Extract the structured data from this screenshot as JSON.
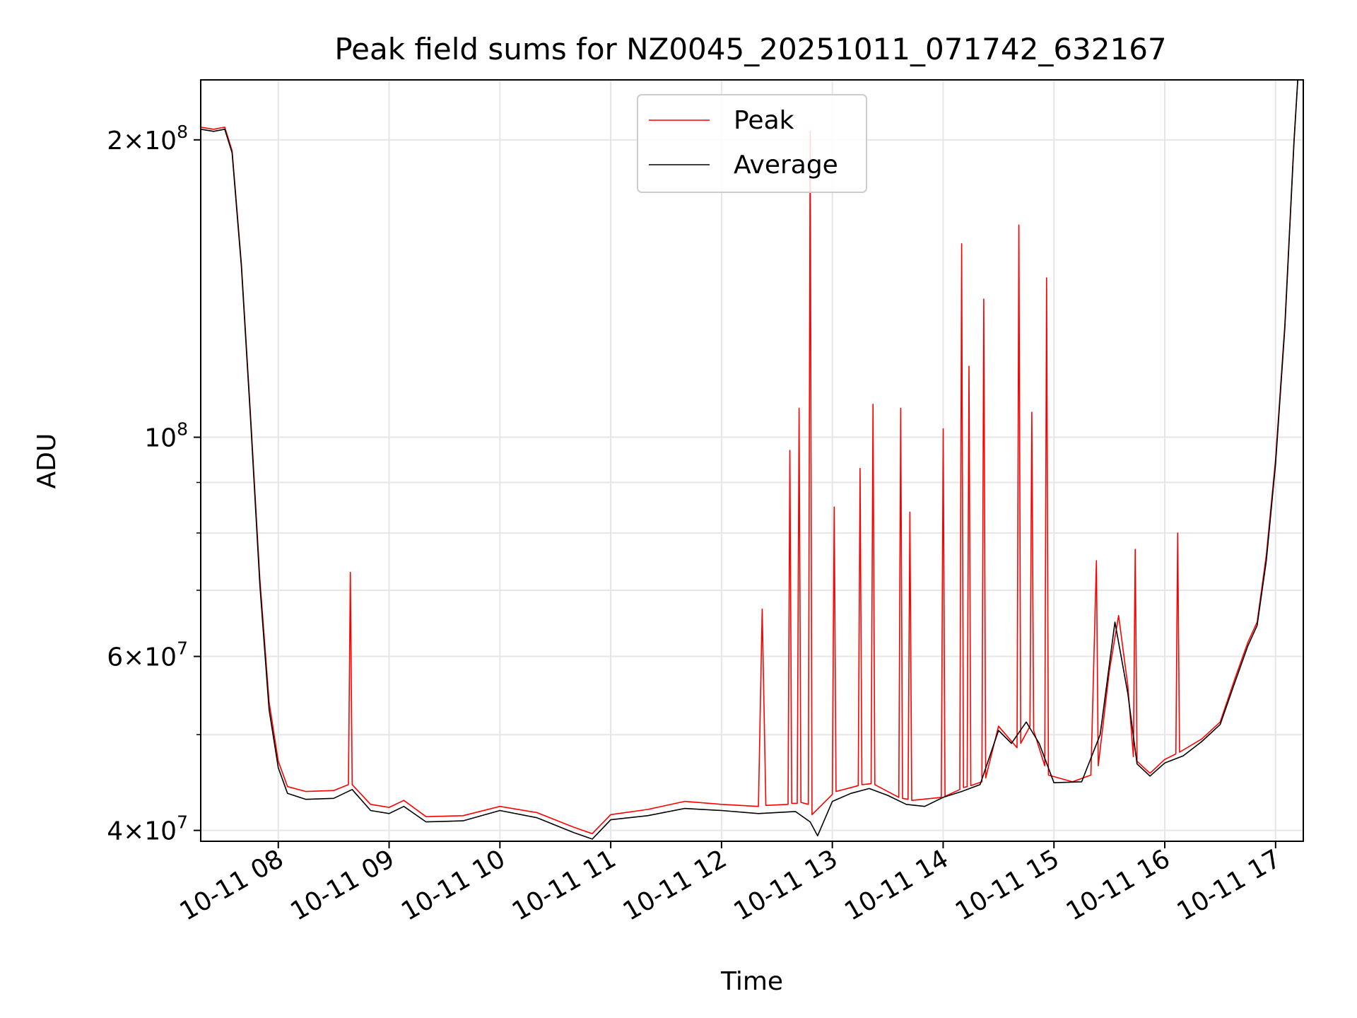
{
  "chart_data": {
    "type": "line",
    "title": "Peak field sums for NZ0045_20251011_071742_632167",
    "xlabel": "Time",
    "ylabel": "ADU",
    "y_scale": "log",
    "ylim": [
      39000000,
      230000000
    ],
    "xlim": [
      "2025-10-11 07:18",
      "2025-10-11 17:15"
    ],
    "grid": true,
    "legend_position": "upper center",
    "x_ticks": [
      {
        "t": "2025-10-11 08:00",
        "label": "10-11 08"
      },
      {
        "t": "2025-10-11 09:00",
        "label": "10-11 09"
      },
      {
        "t": "2025-10-11 10:00",
        "label": "10-11 10"
      },
      {
        "t": "2025-10-11 11:00",
        "label": "10-11 11"
      },
      {
        "t": "2025-10-11 12:00",
        "label": "10-11 12"
      },
      {
        "t": "2025-10-11 13:00",
        "label": "10-11 13"
      },
      {
        "t": "2025-10-11 14:00",
        "label": "10-11 14"
      },
      {
        "t": "2025-10-11 15:00",
        "label": "10-11 15"
      },
      {
        "t": "2025-10-11 16:00",
        "label": "10-11 16"
      },
      {
        "t": "2025-10-11 17:00",
        "label": "10-11 17"
      }
    ],
    "y_ticks": [
      {
        "value": 40000000,
        "mantissa": "4",
        "exp": "7"
      },
      {
        "value": 60000000,
        "mantissa": "6",
        "exp": "7"
      },
      {
        "value": 100000000,
        "mantissa": "",
        "exp": "8"
      },
      {
        "value": 200000000,
        "mantissa": "2",
        "exp": "8"
      }
    ],
    "y_minor_ticks": [
      50000000,
      70000000,
      80000000,
      90000000
    ],
    "series": [
      {
        "name": "Peak",
        "color": "#ff0000",
        "points": [
          [
            "2025-10-11 07:18",
            206000000
          ],
          [
            "2025-10-11 07:25",
            205000000
          ],
          [
            "2025-10-11 07:31",
            206000000
          ],
          [
            "2025-10-11 07:35",
            195000000
          ],
          [
            "2025-10-11 07:40",
            150000000
          ],
          [
            "2025-10-11 07:45",
            105000000
          ],
          [
            "2025-10-11 07:50",
            72000000
          ],
          [
            "2025-10-11 07:55",
            54000000
          ],
          [
            "2025-10-11 08:00",
            47000000
          ],
          [
            "2025-10-11 08:05",
            44300000
          ],
          [
            "2025-10-11 08:15",
            43800000
          ],
          [
            "2025-10-11 08:30",
            43900000
          ],
          [
            "2025-10-11 08:38",
            44500000
          ],
          [
            "2025-10-11 08:39",
            73000000
          ],
          [
            "2025-10-11 08:40",
            44500000
          ],
          [
            "2025-10-11 08:50",
            42500000
          ],
          [
            "2025-10-11 09:00",
            42200000
          ],
          [
            "2025-10-11 09:08",
            42900000
          ],
          [
            "2025-10-11 09:20",
            41300000
          ],
          [
            "2025-10-11 09:40",
            41400000
          ],
          [
            "2025-10-11 10:00",
            42300000
          ],
          [
            "2025-10-11 10:20",
            41700000
          ],
          [
            "2025-10-11 10:40",
            40300000
          ],
          [
            "2025-10-11 10:50",
            39700000
          ],
          [
            "2025-10-11 11:00",
            41500000
          ],
          [
            "2025-10-11 11:20",
            42000000
          ],
          [
            "2025-10-11 11:40",
            42800000
          ],
          [
            "2025-10-11 12:00",
            42500000
          ],
          [
            "2025-10-11 12:20",
            42300000
          ],
          [
            "2025-10-11 12:22",
            67000000
          ],
          [
            "2025-10-11 12:24",
            42400000
          ],
          [
            "2025-10-11 12:36",
            42500000
          ],
          [
            "2025-10-11 12:37",
            97000000
          ],
          [
            "2025-10-11 12:38",
            42600000
          ],
          [
            "2025-10-11 12:41",
            42600000
          ],
          [
            "2025-10-11 12:42",
            107000000
          ],
          [
            "2025-10-11 12:43",
            42700000
          ],
          [
            "2025-10-11 12:47",
            42500000
          ],
          [
            "2025-10-11 12:48",
            204000000
          ],
          [
            "2025-10-11 12:49",
            41500000
          ],
          [
            "2025-10-11 13:00",
            43500000
          ],
          [
            "2025-10-11 13:01",
            85000000
          ],
          [
            "2025-10-11 13:02",
            43800000
          ],
          [
            "2025-10-11 13:14",
            44400000
          ],
          [
            "2025-10-11 13:15",
            93000000
          ],
          [
            "2025-10-11 13:16",
            44500000
          ],
          [
            "2025-10-11 13:21",
            44600000
          ],
          [
            "2025-10-11 13:22",
            108000000
          ],
          [
            "2025-10-11 13:23",
            44500000
          ],
          [
            "2025-10-11 13:36",
            43200000
          ],
          [
            "2025-10-11 13:37",
            107000000
          ],
          [
            "2025-10-11 13:38",
            43100000
          ],
          [
            "2025-10-11 13:41",
            43000000
          ],
          [
            "2025-10-11 13:42",
            84000000
          ],
          [
            "2025-10-11 13:43",
            42900000
          ],
          [
            "2025-10-11 13:59",
            43200000
          ],
          [
            "2025-10-11 14:00",
            102000000
          ],
          [
            "2025-10-11 14:01",
            43300000
          ],
          [
            "2025-10-11 14:09",
            44000000
          ],
          [
            "2025-10-11 14:10",
            157000000
          ],
          [
            "2025-10-11 14:11",
            44200000
          ],
          [
            "2025-10-11 14:13",
            44300000
          ],
          [
            "2025-10-11 14:14",
            118000000
          ],
          [
            "2025-10-11 14:15",
            44400000
          ],
          [
            "2025-10-11 14:21",
            44800000
          ],
          [
            "2025-10-11 14:22",
            138000000
          ],
          [
            "2025-10-11 14:23",
            45200000
          ],
          [
            "2025-10-11 14:30",
            51000000
          ],
          [
            "2025-10-11 14:40",
            48500000
          ],
          [
            "2025-10-11 14:41",
            164000000
          ],
          [
            "2025-10-11 14:42",
            49000000
          ],
          [
            "2025-10-11 14:47",
            51000000
          ],
          [
            "2025-10-11 14:48",
            106000000
          ],
          [
            "2025-10-11 14:49",
            50500000
          ],
          [
            "2025-10-11 14:55",
            46500000
          ],
          [
            "2025-10-11 14:56",
            145000000
          ],
          [
            "2025-10-11 14:57",
            45500000
          ],
          [
            "2025-10-11 15:10",
            44800000
          ],
          [
            "2025-10-11 15:20",
            45500000
          ],
          [
            "2025-10-11 15:23",
            75000000
          ],
          [
            "2025-10-11 15:24",
            46500000
          ],
          [
            "2025-10-11 15:30",
            58000000
          ],
          [
            "2025-10-11 15:35",
            66000000
          ],
          [
            "2025-10-11 15:40",
            56000000
          ],
          [
            "2025-10-11 15:43",
            47500000
          ],
          [
            "2025-10-11 15:44",
            77000000
          ],
          [
            "2025-10-11 15:45",
            47000000
          ],
          [
            "2025-10-11 15:52",
            45700000
          ],
          [
            "2025-10-11 16:00",
            47200000
          ],
          [
            "2025-10-11 16:06",
            47800000
          ],
          [
            "2025-10-11 16:07",
            80000000
          ],
          [
            "2025-10-11 16:08",
            48000000
          ],
          [
            "2025-10-11 16:20",
            49500000
          ],
          [
            "2025-10-11 16:30",
            51500000
          ],
          [
            "2025-10-11 16:38",
            57000000
          ],
          [
            "2025-10-11 16:45",
            62000000
          ],
          [
            "2025-10-11 16:50",
            65000000
          ],
          [
            "2025-10-11 16:55",
            76000000
          ],
          [
            "2025-10-11 17:00",
            95000000
          ],
          [
            "2025-10-11 17:05",
            130000000
          ],
          [
            "2025-10-11 17:10",
            200000000
          ],
          [
            "2025-10-11 17:12",
            230000000
          ]
        ]
      },
      {
        "name": "Average",
        "color": "#000000",
        "points": [
          [
            "2025-10-11 07:18",
            205000000
          ],
          [
            "2025-10-11 07:25",
            204000000
          ],
          [
            "2025-10-11 07:31",
            205000000
          ],
          [
            "2025-10-11 07:35",
            194000000
          ],
          [
            "2025-10-11 07:40",
            149000000
          ],
          [
            "2025-10-11 07:45",
            104000000
          ],
          [
            "2025-10-11 07:50",
            71000000
          ],
          [
            "2025-10-11 07:55",
            53000000
          ],
          [
            "2025-10-11 08:00",
            46300000
          ],
          [
            "2025-10-11 08:05",
            43600000
          ],
          [
            "2025-10-11 08:15",
            43000000
          ],
          [
            "2025-10-11 08:30",
            43100000
          ],
          [
            "2025-10-11 08:40",
            44000000
          ],
          [
            "2025-10-11 08:50",
            41900000
          ],
          [
            "2025-10-11 09:00",
            41600000
          ],
          [
            "2025-10-11 09:08",
            42300000
          ],
          [
            "2025-10-11 09:20",
            40800000
          ],
          [
            "2025-10-11 09:40",
            40900000
          ],
          [
            "2025-10-11 10:00",
            41900000
          ],
          [
            "2025-10-11 10:20",
            41200000
          ],
          [
            "2025-10-11 10:40",
            39800000
          ],
          [
            "2025-10-11 10:50",
            39200000
          ],
          [
            "2025-10-11 11:00",
            41000000
          ],
          [
            "2025-10-11 11:20",
            41400000
          ],
          [
            "2025-10-11 11:40",
            42100000
          ],
          [
            "2025-10-11 12:00",
            41900000
          ],
          [
            "2025-10-11 12:20",
            41600000
          ],
          [
            "2025-10-11 12:40",
            41800000
          ],
          [
            "2025-10-11 12:48",
            40800000
          ],
          [
            "2025-10-11 12:52",
            39500000
          ],
          [
            "2025-10-11 13:00",
            42800000
          ],
          [
            "2025-10-11 13:10",
            43600000
          ],
          [
            "2025-10-11 13:20",
            44100000
          ],
          [
            "2025-10-11 13:30",
            43400000
          ],
          [
            "2025-10-11 13:40",
            42500000
          ],
          [
            "2025-10-11 13:50",
            42300000
          ],
          [
            "2025-10-11 14:00",
            43200000
          ],
          [
            "2025-10-11 14:10",
            43800000
          ],
          [
            "2025-10-11 14:20",
            44500000
          ],
          [
            "2025-10-11 14:30",
            50500000
          ],
          [
            "2025-10-11 14:37",
            49000000
          ],
          [
            "2025-10-11 14:45",
            51500000
          ],
          [
            "2025-10-11 14:52",
            49000000
          ],
          [
            "2025-10-11 15:00",
            44700000
          ],
          [
            "2025-10-11 15:15",
            44800000
          ],
          [
            "2025-10-11 15:25",
            50000000
          ],
          [
            "2025-10-11 15:33",
            65000000
          ],
          [
            "2025-10-11 15:40",
            55000000
          ],
          [
            "2025-10-11 15:45",
            46700000
          ],
          [
            "2025-10-11 15:52",
            45400000
          ],
          [
            "2025-10-11 16:00",
            46800000
          ],
          [
            "2025-10-11 16:10",
            47600000
          ],
          [
            "2025-10-11 16:20",
            49200000
          ],
          [
            "2025-10-11 16:30",
            51200000
          ],
          [
            "2025-10-11 16:38",
            56500000
          ],
          [
            "2025-10-11 16:45",
            61500000
          ],
          [
            "2025-10-11 16:50",
            64500000
          ],
          [
            "2025-10-11 16:55",
            75000000
          ],
          [
            "2025-10-11 17:00",
            94000000
          ],
          [
            "2025-10-11 17:05",
            129000000
          ],
          [
            "2025-10-11 17:10",
            199000000
          ],
          [
            "2025-10-11 17:12",
            230000000
          ]
        ]
      }
    ]
  }
}
